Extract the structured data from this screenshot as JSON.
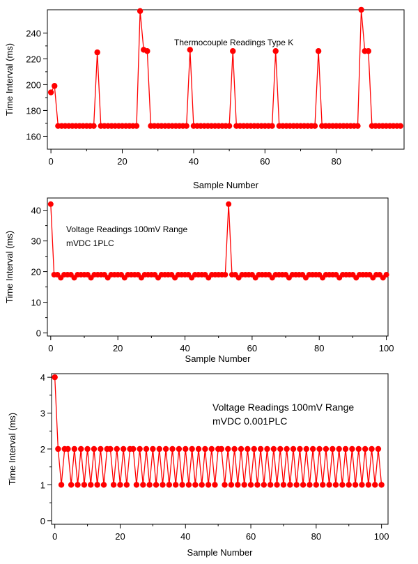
{
  "colors": {
    "series": "#ff0000",
    "axis": "#000000",
    "background": "#ffffff"
  },
  "chart_data": [
    {
      "type": "line",
      "title": "",
      "annotation": [
        "Thermocouple Readings Type K"
      ],
      "xlabel": "Sample Number",
      "ylabel": "Time Interval (ms)",
      "xlim": [
        -1,
        99
      ],
      "ylim": [
        150,
        258
      ],
      "xticks": [
        0,
        20,
        40,
        60,
        80
      ],
      "yticks": [
        160,
        180,
        200,
        220,
        240
      ],
      "grid": false,
      "legend": "none",
      "markers": true,
      "series": [
        {
          "x": [
            0,
            1,
            2,
            3,
            4,
            5,
            6,
            7,
            8,
            9,
            10,
            11,
            12,
            13,
            14,
            15,
            16,
            17,
            18,
            19,
            20,
            21,
            22,
            23,
            24,
            25,
            26,
            27,
            28,
            29,
            30,
            31,
            32,
            33,
            34,
            35,
            36,
            37,
            38,
            39,
            40,
            41,
            42,
            43,
            44,
            45,
            46,
            47,
            48,
            49,
            50,
            51,
            52,
            53,
            54,
            55,
            56,
            57,
            58,
            59,
            60,
            61,
            62,
            63,
            64,
            65,
            66,
            67,
            68,
            69,
            70,
            71,
            72,
            73,
            74,
            75,
            76,
            77,
            78,
            79,
            80,
            81,
            82,
            83,
            84,
            85,
            86,
            87,
            88,
            89,
            90,
            91,
            92,
            93,
            94,
            95,
            96,
            97,
            98
          ],
          "values": [
            194,
            199,
            168,
            168,
            168,
            168,
            168,
            168,
            168,
            168,
            168,
            168,
            168,
            225,
            168,
            168,
            168,
            168,
            168,
            168,
            168,
            168,
            168,
            168,
            168,
            257,
            227,
            226,
            168,
            168,
            168,
            168,
            168,
            168,
            168,
            168,
            168,
            168,
            168,
            227,
            168,
            168,
            168,
            168,
            168,
            168,
            168,
            168,
            168,
            168,
            168,
            226,
            168,
            168,
            168,
            168,
            168,
            168,
            168,
            168,
            168,
            168,
            168,
            226,
            168,
            168,
            168,
            168,
            168,
            168,
            168,
            168,
            168,
            168,
            168,
            226,
            168,
            168,
            168,
            168,
            168,
            168,
            168,
            168,
            168,
            168,
            168,
            258,
            226,
            226,
            168,
            168,
            168,
            168,
            168,
            168,
            168,
            168,
            168
          ]
        }
      ]
    },
    {
      "type": "line",
      "title": "",
      "annotation": [
        "Voltage Readings 100mV Range",
        "mVDC 1PLC"
      ],
      "xlabel": "Sample Number",
      "ylabel": "Time Interval (ms)",
      "xlim": [
        -1,
        100.5
      ],
      "ylim": [
        -1,
        44
      ],
      "xticks": [
        0,
        20,
        40,
        60,
        80,
        100
      ],
      "yticks": [
        0,
        10,
        20,
        30,
        40
      ],
      "grid": false,
      "legend": "none",
      "markers": true,
      "series": [
        {
          "x": [
            0,
            1,
            2,
            3,
            4,
            5,
            6,
            7,
            8,
            9,
            10,
            11,
            12,
            13,
            14,
            15,
            16,
            17,
            18,
            19,
            20,
            21,
            22,
            23,
            24,
            25,
            26,
            27,
            28,
            29,
            30,
            31,
            32,
            33,
            34,
            35,
            36,
            37,
            38,
            39,
            40,
            41,
            42,
            43,
            44,
            45,
            46,
            47,
            48,
            49,
            50,
            51,
            52,
            53,
            54,
            55,
            56,
            57,
            58,
            59,
            60,
            61,
            62,
            63,
            64,
            65,
            66,
            67,
            68,
            69,
            70,
            71,
            72,
            73,
            74,
            75,
            76,
            77,
            78,
            79,
            80,
            81,
            82,
            83,
            84,
            85,
            86,
            87,
            88,
            89,
            90,
            91,
            92,
            93,
            94,
            95,
            96,
            97,
            98,
            99,
            100
          ],
          "values": [
            42,
            19,
            19,
            18,
            19,
            19,
            19,
            18,
            19,
            19,
            19,
            19,
            18,
            19,
            19,
            19,
            19,
            18,
            19,
            19,
            19,
            19,
            18,
            19,
            19,
            19,
            19,
            18,
            19,
            19,
            19,
            19,
            18,
            19,
            19,
            19,
            19,
            18,
            19,
            19,
            19,
            19,
            18,
            19,
            19,
            19,
            19,
            18,
            19,
            19,
            19,
            19,
            19,
            42,
            19,
            19,
            18,
            19,
            19,
            19,
            19,
            18,
            19,
            19,
            19,
            19,
            18,
            19,
            19,
            19,
            19,
            18,
            19,
            19,
            19,
            19,
            18,
            19,
            19,
            19,
            19,
            18,
            19,
            19,
            19,
            19,
            18,
            19,
            19,
            19,
            19,
            18,
            19,
            19,
            19,
            19,
            18,
            19,
            19,
            18,
            19
          ]
        }
      ]
    },
    {
      "type": "line",
      "title": "",
      "annotation": [
        "Voltage Readings 100mV Range",
        "mVDC 0.001PLC"
      ],
      "xlabel": "Sample Number",
      "ylabel": "Time Interval (ms)",
      "xlim": [
        -1,
        102
      ],
      "ylim": [
        -0.1,
        4.1
      ],
      "xticks": [
        0,
        20,
        40,
        60,
        80,
        100
      ],
      "yticks": [
        0,
        1,
        2,
        3,
        4
      ],
      "grid": false,
      "legend": "none",
      "markers": true,
      "series": [
        {
          "x": [
            0,
            1,
            2,
            3,
            4,
            5,
            6,
            7,
            8,
            9,
            10,
            11,
            12,
            13,
            14,
            15,
            16,
            17,
            18,
            19,
            20,
            21,
            22,
            23,
            24,
            25,
            26,
            27,
            28,
            29,
            30,
            31,
            32,
            33,
            34,
            35,
            36,
            37,
            38,
            39,
            40,
            41,
            42,
            43,
            44,
            45,
            46,
            47,
            48,
            49,
            50,
            51,
            52,
            53,
            54,
            55,
            56,
            57,
            58,
            59,
            60,
            61,
            62,
            63,
            64,
            65,
            66,
            67,
            68,
            69,
            70,
            71,
            72,
            73,
            74,
            75,
            76,
            77,
            78,
            79,
            80,
            81,
            82,
            83,
            84,
            85,
            86,
            87,
            88,
            89,
            90,
            91,
            92,
            93,
            94,
            95,
            96,
            97,
            98,
            99,
            100
          ],
          "values": [
            4,
            2,
            1,
            2,
            2,
            1,
            2,
            1,
            2,
            1,
            2,
            1,
            2,
            1,
            2,
            1,
            2,
            2,
            1,
            2,
            1,
            2,
            1,
            2,
            2,
            1,
            2,
            1,
            2,
            1,
            2,
            1,
            2,
            1,
            2,
            1,
            2,
            1,
            2,
            1,
            2,
            1,
            2,
            1,
            2,
            1,
            2,
            1,
            2,
            1,
            2,
            2,
            1,
            2,
            1,
            2,
            1,
            2,
            1,
            2,
            1,
            2,
            1,
            2,
            1,
            2,
            1,
            2,
            1,
            2,
            1,
            2,
            1,
            2,
            1,
            2,
            1,
            2,
            1,
            2,
            1,
            2,
            1,
            2,
            1,
            2,
            1,
            2,
            1,
            2,
            1,
            2,
            1,
            2,
            1,
            2,
            1,
            2,
            1,
            2,
            1
          ]
        }
      ]
    }
  ]
}
